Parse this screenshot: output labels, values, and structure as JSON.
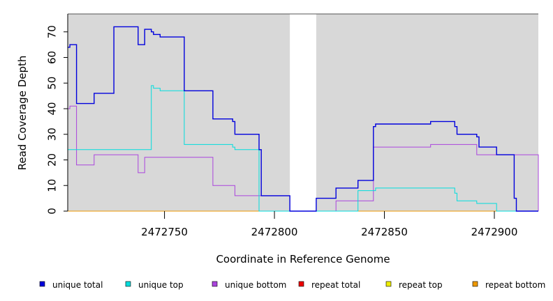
{
  "chart_data": {
    "type": "line",
    "title": "",
    "xlabel": "Coordinate in Reference Genome",
    "ylabel": "Read Coverage Depth",
    "xlim": [
      2472706,
      2472920
    ],
    "ylim": [
      0,
      77
    ],
    "x_ticks": [
      2472750,
      2472800,
      2472850,
      2472900
    ],
    "x_tick_labels": [
      "2472750",
      "2472800",
      "2472850",
      "2472900"
    ],
    "y_ticks": [
      0,
      10,
      20,
      30,
      40,
      50,
      60,
      70
    ],
    "y_tick_labels": [
      "0",
      "10",
      "20",
      "30",
      "40",
      "50",
      "60",
      "70"
    ],
    "background_color": "#d8d8d8",
    "gap_region": [
      2472807,
      2472819
    ],
    "legend_position": "bottom",
    "series": [
      {
        "name": "unique total",
        "color": "#0000dd",
        "step": true,
        "x": [
          2472706,
          2472707,
          2472710,
          2472718,
          2472727,
          2472738,
          2472741,
          2472744,
          2472745,
          2472748,
          2472759,
          2472772,
          2472781,
          2472782,
          2472793,
          2472794,
          2472807,
          2472819,
          2472828,
          2472838,
          2472845,
          2472846,
          2472871,
          2472882,
          2472883,
          2472892,
          2472893,
          2472901,
          2472909,
          2472910,
          2472920
        ],
        "values": [
          64,
          65,
          42,
          46,
          72,
          65,
          71,
          70,
          69,
          68,
          47,
          36,
          35,
          30,
          24,
          6,
          0,
          5,
          9,
          12,
          33,
          34,
          35,
          33,
          30,
          29,
          25,
          22,
          5,
          0,
          0
        ]
      },
      {
        "name": "unique top",
        "color": "#00dddd",
        "step": true,
        "x": [
          2472706,
          2472727,
          2472744,
          2472745,
          2472748,
          2472759,
          2472781,
          2472782,
          2472793,
          2472807,
          2472819,
          2472838,
          2472846,
          2472882,
          2472883,
          2472892,
          2472901,
          2472920
        ],
        "values": [
          24,
          24,
          49,
          48,
          47,
          26,
          25,
          24,
          0,
          0,
          0,
          8,
          9,
          7,
          4,
          3,
          0,
          0
        ]
      },
      {
        "name": "unique bottom",
        "color": "#aa44dd",
        "step": true,
        "x": [
          2472706,
          2472707,
          2472710,
          2472718,
          2472738,
          2472741,
          2472772,
          2472782,
          2472793,
          2472807,
          2472819,
          2472828,
          2472845,
          2472871,
          2472892,
          2472901,
          2472920
        ],
        "values": [
          40,
          41,
          18,
          22,
          15,
          21,
          10,
          6,
          6,
          0,
          0,
          4,
          25,
          26,
          22,
          22,
          0
        ]
      },
      {
        "name": "repeat total",
        "color": "#ee0000",
        "step": true,
        "x": [
          2472706,
          2472920
        ],
        "values": [
          0,
          0
        ]
      },
      {
        "name": "repeat top",
        "color": "#eeee00",
        "step": true,
        "x": [
          2472706,
          2472920
        ],
        "values": [
          0,
          0
        ]
      },
      {
        "name": "repeat bottom",
        "color": "#ee9900",
        "step": true,
        "x": [
          2472706,
          2472920
        ],
        "values": [
          0,
          0
        ]
      }
    ]
  }
}
